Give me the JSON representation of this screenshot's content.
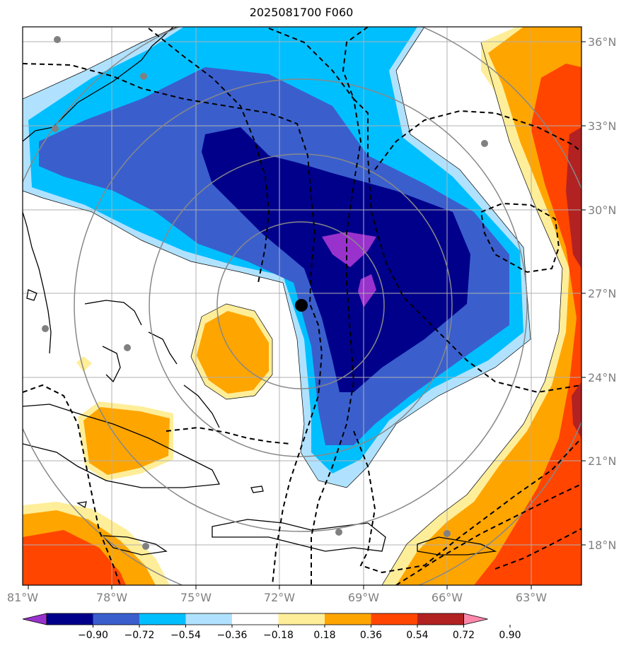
{
  "title": "2025081700 F060",
  "lat_labels": [
    "36°N",
    "33°N",
    "30°N",
    "27°N",
    "24°N",
    "21°N",
    "18°N"
  ],
  "lon_labels": [
    "81°W",
    "78°W",
    "75°W",
    "72°W",
    "69°W",
    "66°W",
    "63°W"
  ],
  "colorbar": {
    "ticks": [
      "−0.90",
      "−0.72",
      "−0.54",
      "−0.36",
      "−0.18",
      "0.18",
      "0.36",
      "0.54",
      "0.72",
      "0.90"
    ],
    "colors": [
      "#9932cc",
      "#00008b",
      "#3a5fcd",
      "#00bfff",
      "#b0e2ff",
      "#ffffff",
      "#ffee99",
      "#ffa500",
      "#ff4500",
      "#b22222",
      "#ff88aa"
    ]
  },
  "map": {
    "extent_lon": [
      -81,
      -61
    ],
    "extent_lat": [
      16.6,
      36.6
    ],
    "storm_center_marker": "black-dot",
    "range_rings": "gray-circles",
    "contours": "black-dashed"
  }
}
